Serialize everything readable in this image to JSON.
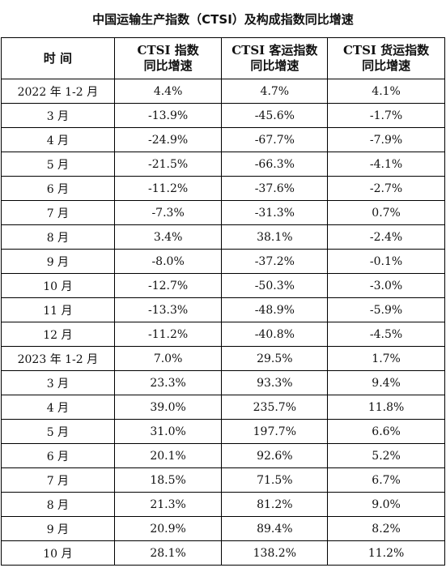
{
  "title": "中国运输生产指数（CTSI）及构成指数同比增速",
  "header": {
    "col_label": "时 间",
    "col_ctsi_line1": "CTSI 指数",
    "col_ctsi_line2": "同比增速",
    "col_passenger_line1": "CTSI 客运指数",
    "col_passenger_line2": "同比增速",
    "col_freight_line1": "CTSI 货运指数",
    "col_freight_line2": "同比增速"
  },
  "rows": [
    {
      "period": "2022 年 1-2 月",
      "ctsi": "4.4%",
      "passenger": "4.7%",
      "freight": "4.1%"
    },
    {
      "period": "3 月",
      "ctsi": "-13.9%",
      "passenger": "-45.6%",
      "freight": "-1.7%"
    },
    {
      "period": "4 月",
      "ctsi": "-24.9%",
      "passenger": "-67.7%",
      "freight": "-7.9%"
    },
    {
      "period": "5 月",
      "ctsi": "-21.5%",
      "passenger": "-66.3%",
      "freight": "-4.1%"
    },
    {
      "period": "6 月",
      "ctsi": "-11.2%",
      "passenger": "-37.6%",
      "freight": "-2.7%"
    },
    {
      "period": "7 月",
      "ctsi": "-7.3%",
      "passenger": "-31.3%",
      "freight": "0.7%"
    },
    {
      "period": "8 月",
      "ctsi": "3.4%",
      "passenger": "38.1%",
      "freight": "-2.4%"
    },
    {
      "period": "9 月",
      "ctsi": "-8.0%",
      "passenger": "-37.2%",
      "freight": "-0.1%"
    },
    {
      "period": "10 月",
      "ctsi": "-12.7%",
      "passenger": "-50.3%",
      "freight": "-3.0%"
    },
    {
      "period": "11 月",
      "ctsi": "-13.3%",
      "passenger": "-48.9%",
      "freight": "-5.9%"
    },
    {
      "period": "12 月",
      "ctsi": "-11.2%",
      "passenger": "-40.8%",
      "freight": "-4.5%"
    },
    {
      "period": "2023 年 1-2 月",
      "ctsi": "7.0%",
      "passenger": "29.5%",
      "freight": "1.7%"
    },
    {
      "period": "3 月",
      "ctsi": "23.3%",
      "passenger": "93.3%",
      "freight": "9.4%"
    },
    {
      "period": "4 月",
      "ctsi": "39.0%",
      "passenger": "235.7%",
      "freight": "11.8%"
    },
    {
      "period": "5 月",
      "ctsi": "31.0%",
      "passenger": "197.7%",
      "freight": "6.6%"
    },
    {
      "period": "6 月",
      "ctsi": "20.1%",
      "passenger": "92.6%",
      "freight": "5.2%"
    },
    {
      "period": "7 月",
      "ctsi": "18.5%",
      "passenger": "71.5%",
      "freight": "6.7%"
    },
    {
      "period": "8 月",
      "ctsi": "21.3%",
      "passenger": "81.2%",
      "freight": "9.0%"
    },
    {
      "period": "9 月",
      "ctsi": "20.9%",
      "passenger": "89.4%",
      "freight": "8.2%"
    },
    {
      "period": "10 月",
      "ctsi": "28.1%",
      "passenger": "138.2%",
      "freight": "11.2%"
    }
  ]
}
